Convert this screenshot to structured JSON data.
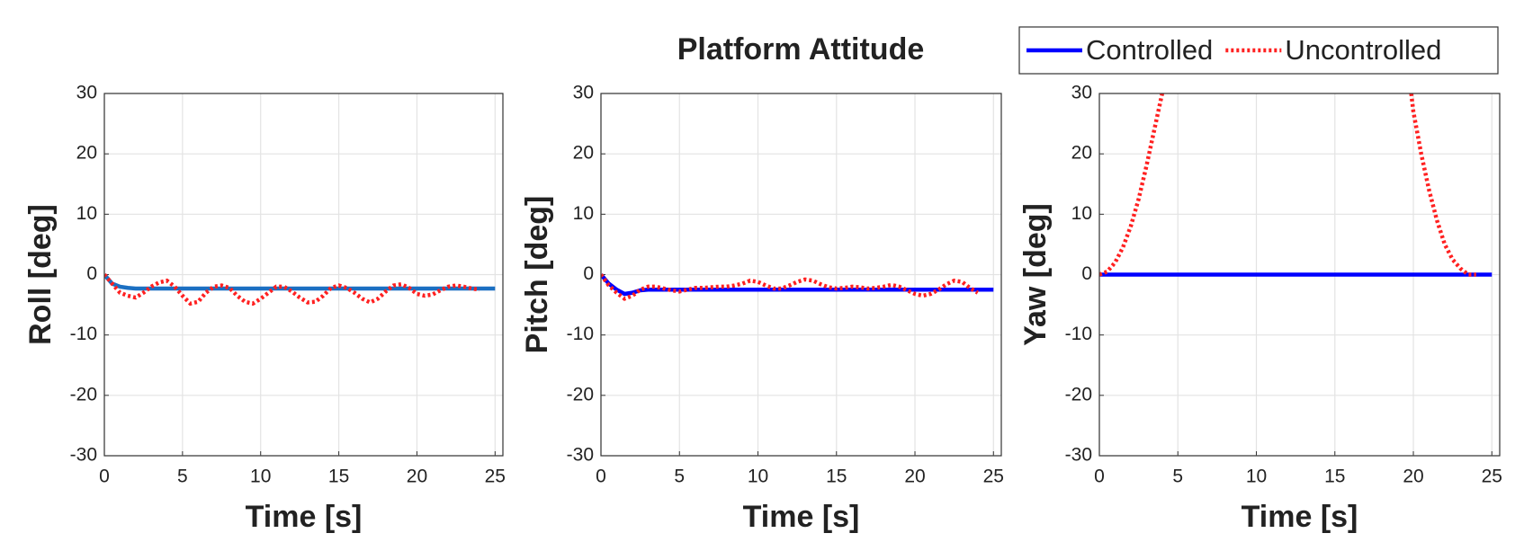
{
  "title": "Platform Attitude",
  "legend": "upper right",
  "chart_data": [
    {
      "type": "line",
      "xlabel": "Time [s]",
      "ylabel": "Roll [deg]",
      "xlim": [
        0,
        25.5
      ],
      "ylim": [
        -30,
        30
      ],
      "xticks": [
        0,
        5,
        10,
        15,
        20,
        25
      ],
      "yticks": [
        -30,
        -20,
        -10,
        0,
        10,
        20,
        30
      ],
      "grid": true,
      "x": [
        0,
        0.5,
        1,
        1.5,
        2,
        2.5,
        3,
        3.5,
        4,
        4.5,
        5,
        5.5,
        6,
        6.5,
        7,
        7.5,
        8,
        8.5,
        9,
        9.5,
        10,
        10.5,
        11,
        11.5,
        12,
        12.5,
        13,
        13.5,
        14,
        14.5,
        15,
        15.5,
        16,
        16.5,
        17,
        17.5,
        18,
        18.5,
        19,
        19.5,
        20,
        20.5,
        21,
        21.5,
        22,
        22.5,
        23,
        23.5,
        24,
        24.5,
        25
      ],
      "series": [
        {
          "name": "Controlled",
          "color": "#1b6fc2",
          "style": "solid",
          "values": [
            0,
            -1.5,
            -2.0,
            -2.2,
            -2.3,
            -2.3,
            -2.3,
            -2.3,
            -2.3,
            -2.3,
            -2.3,
            -2.3,
            -2.3,
            -2.3,
            -2.3,
            -2.3,
            -2.3,
            -2.3,
            -2.3,
            -2.3,
            -2.3,
            -2.3,
            -2.3,
            -2.3,
            -2.3,
            -2.3,
            -2.3,
            -2.3,
            -2.3,
            -2.3,
            -2.3,
            -2.3,
            -2.3,
            -2.3,
            -2.3,
            -2.3,
            -2.3,
            -2.3,
            -2.3,
            -2.3,
            -2.3,
            -2.3,
            -2.3,
            -2.3,
            -2.3,
            -2.3,
            -2.3,
            -2.3,
            -2.3,
            -2.3,
            -2.3
          ]
        },
        {
          "name": "Uncontrolled",
          "color": "#ff2020",
          "style": "dotted",
          "values": [
            0,
            -1.5,
            -3,
            -3.5,
            -3.8,
            -3,
            -2,
            -1.3,
            -1.0,
            -2,
            -3.5,
            -4.8,
            -4.5,
            -3,
            -2,
            -1.8,
            -2.2,
            -3.5,
            -4.5,
            -4.8,
            -4,
            -3,
            -2,
            -2,
            -2.8,
            -3.8,
            -4.6,
            -4.5,
            -3.5,
            -2.2,
            -1.8,
            -2.2,
            -3,
            -4,
            -4.6,
            -4,
            -2.8,
            -1.8,
            -1.6,
            -2.2,
            -3.2,
            -3.5,
            -3.3,
            -2.6,
            -2.0,
            -1.8,
            -2,
            -2.3,
            -2.5,
            null,
            null
          ]
        }
      ]
    },
    {
      "type": "line",
      "xlabel": "Time [s]",
      "ylabel": "Pitch [deg]",
      "xlim": [
        0,
        25.5
      ],
      "ylim": [
        -30,
        30
      ],
      "xticks": [
        0,
        5,
        10,
        15,
        20,
        25
      ],
      "yticks": [
        -30,
        -20,
        -10,
        0,
        10,
        20,
        30
      ],
      "grid": true,
      "x": [
        0,
        0.5,
        1,
        1.5,
        2,
        2.5,
        3,
        3.5,
        4,
        4.5,
        5,
        5.5,
        6,
        6.5,
        7,
        7.5,
        8,
        8.5,
        9,
        9.5,
        10,
        10.5,
        11,
        11.5,
        12,
        12.5,
        13,
        13.5,
        14,
        14.5,
        15,
        15.5,
        16,
        16.5,
        17,
        17.5,
        18,
        18.5,
        19,
        19.5,
        20,
        20.5,
        21,
        21.5,
        22,
        22.5,
        23,
        23.5,
        24,
        24.5,
        25
      ],
      "series": [
        {
          "name": "Controlled",
          "color": "#0000ff",
          "style": "solid",
          "values": [
            0,
            -1.5,
            -2.5,
            -3.2,
            -3.0,
            -2.6,
            -2.5,
            -2.5,
            -2.5,
            -2.5,
            -2.5,
            -2.5,
            -2.5,
            -2.5,
            -2.5,
            -2.5,
            -2.5,
            -2.5,
            -2.5,
            -2.5,
            -2.5,
            -2.5,
            -2.5,
            -2.5,
            -2.5,
            -2.5,
            -2.5,
            -2.5,
            -2.5,
            -2.5,
            -2.5,
            -2.5,
            -2.5,
            -2.5,
            -2.5,
            -2.5,
            -2.5,
            -2.5,
            -2.5,
            -2.5,
            -2.5,
            -2.5,
            -2.5,
            -2.5,
            -2.5,
            -2.5,
            -2.5,
            -2.5,
            -2.5,
            -2.5,
            -2.5
          ]
        },
        {
          "name": "Uncontrolled",
          "color": "#ff2020",
          "style": "dotted",
          "values": [
            0,
            -1.8,
            -3,
            -4,
            -3.5,
            -2.5,
            -2,
            -2,
            -2.3,
            -2.6,
            -2.8,
            -2.5,
            -2.2,
            -2.2,
            -2.1,
            -2,
            -2,
            -1.8,
            -1.5,
            -1.0,
            -1.2,
            -1.8,
            -2.3,
            -2.3,
            -1.8,
            -1.2,
            -0.8,
            -1.0,
            -1.6,
            -2.1,
            -2.3,
            -2.2,
            -2.0,
            -2.1,
            -2.3,
            -2.2,
            -2.0,
            -1.7,
            -2.0,
            -2.6,
            -3.2,
            -3.5,
            -3.2,
            -2.5,
            -1.6,
            -1.0,
            -1.2,
            -2.2,
            -3.0,
            null,
            null
          ]
        }
      ]
    },
    {
      "type": "line",
      "xlabel": "Time [s]",
      "ylabel": "Yaw [deg]",
      "xlim": [
        0,
        25.5
      ],
      "ylim": [
        -30,
        30
      ],
      "xticks": [
        0,
        5,
        10,
        15,
        20,
        25
      ],
      "yticks": [
        -30,
        -20,
        -10,
        0,
        10,
        20,
        30
      ],
      "grid": true,
      "x": [
        0,
        0.5,
        1,
        1.5,
        2,
        2.5,
        3,
        3.5,
        4,
        4.5,
        5,
        5.5,
        6,
        6.5,
        7,
        7.5,
        8,
        8.5,
        9,
        9.5,
        10,
        10.5,
        11,
        11.5,
        12,
        12.5,
        13,
        13.5,
        14,
        14.5,
        15,
        15.5,
        16,
        16.5,
        17,
        17.5,
        18,
        18.5,
        19,
        19.5,
        20,
        20.5,
        21,
        21.5,
        22,
        22.5,
        23,
        23.5,
        24,
        24.5,
        25
      ],
      "series": [
        {
          "name": "Controlled",
          "color": "#0000ff",
          "style": "solid",
          "values": [
            0,
            0,
            0,
            0,
            0,
            0,
            0,
            0,
            0,
            0,
            0,
            0,
            0,
            0,
            0,
            0,
            0,
            0,
            0,
            0,
            0,
            0,
            0,
            0,
            0,
            0,
            0,
            0,
            0,
            0,
            0,
            0,
            0,
            0,
            0,
            0,
            0,
            0,
            0,
            0,
            0,
            0,
            0,
            0,
            0,
            0,
            0,
            0,
            0,
            0,
            0
          ]
        },
        {
          "name": "Uncontrolled",
          "color": "#ff2020",
          "style": "dotted",
          "values": [
            0,
            0.5,
            2,
            4.5,
            8,
            12.5,
            18,
            24,
            30,
            37,
            null,
            null,
            null,
            null,
            null,
            null,
            null,
            null,
            null,
            null,
            null,
            null,
            null,
            null,
            null,
            null,
            null,
            null,
            null,
            null,
            null,
            null,
            null,
            null,
            null,
            null,
            null,
            null,
            null,
            38,
            27,
            20,
            14,
            9,
            5,
            2.5,
            1,
            0,
            0,
            null,
            null
          ]
        }
      ]
    }
  ]
}
